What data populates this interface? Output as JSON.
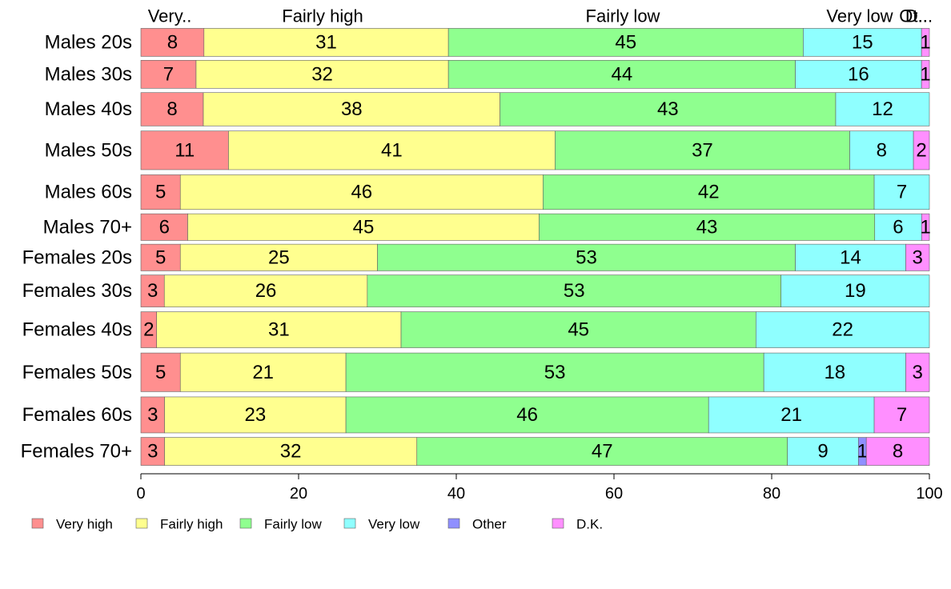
{
  "chart_data": {
    "type": "bar",
    "orientation": "horizontal",
    "stacked": true,
    "percent": true,
    "categories": [
      "Males 20s",
      "Males 30s",
      "Males 40s",
      "Males 50s",
      "Males 60s",
      "Males 70+",
      "Females 20s",
      "Females 30s",
      "Females 40s",
      "Females 50s",
      "Females 60s",
      "Females 70+"
    ],
    "series": [
      {
        "name": "Very high",
        "color": "#ff8f8f",
        "values": [
          8,
          7,
          8,
          11,
          5,
          6,
          5,
          3,
          2,
          5,
          3,
          3
        ]
      },
      {
        "name": "Fairly high",
        "color": "#ffff8f",
        "values": [
          31,
          32,
          38,
          41,
          46,
          45,
          25,
          26,
          31,
          21,
          23,
          32
        ]
      },
      {
        "name": "Fairly low",
        "color": "#8fff8f",
        "values": [
          45,
          44,
          43,
          37,
          42,
          43,
          53,
          53,
          45,
          53,
          46,
          47
        ]
      },
      {
        "name": "Very low",
        "color": "#8fffff",
        "values": [
          15,
          16,
          12,
          8,
          7,
          6,
          14,
          19,
          22,
          18,
          21,
          9
        ]
      },
      {
        "name": "Other",
        "color": "#8f8fff",
        "values": [
          0,
          0,
          0,
          0,
          0,
          0,
          0,
          0,
          0,
          0,
          0,
          1
        ]
      },
      {
        "name": "D.K.",
        "color": "#ff8fff",
        "values": [
          1,
          1,
          0,
          2,
          0,
          1,
          3,
          0,
          0,
          3,
          7,
          8
        ]
      }
    ],
    "bar_width_weights": [
      1.05,
      1.05,
      1.25,
      1.45,
      1.3,
      1.0,
      1.0,
      1.2,
      1.35,
      1.45,
      1.35,
      1.05
    ],
    "top_labels": [
      "Very..",
      "Fairly high",
      "Fairly low",
      "Very low",
      "Ot..",
      "D..."
    ],
    "xlim": [
      0,
      100
    ],
    "x_ticks": [
      0,
      20,
      40,
      60,
      80,
      100
    ],
    "xlabel": "",
    "ylabel": "",
    "title": "",
    "grid": false,
    "legend_position": "bottom",
    "legend": [
      "Very high",
      "Fairly high",
      "Fairly low",
      "Very low",
      "Other",
      "D.K."
    ]
  }
}
